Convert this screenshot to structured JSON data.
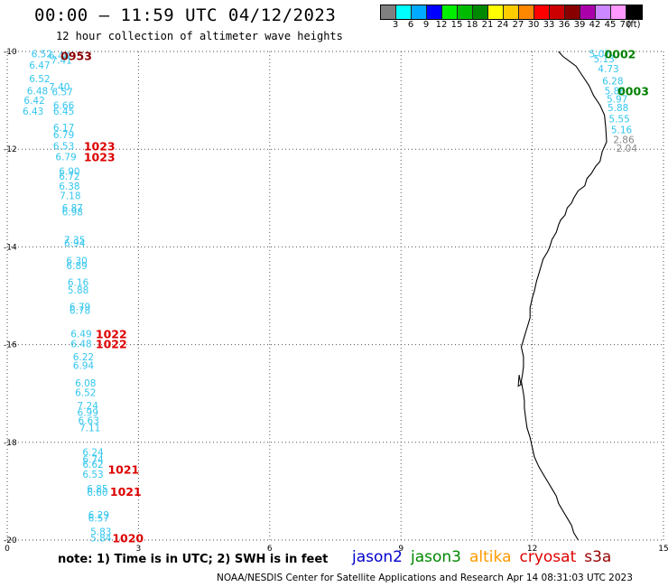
{
  "title": "00:00 – 11:59 UTC 04/12/2023",
  "subtitle": "12 hour collection of altimeter wave heights",
  "colorbar": {
    "colors": [
      "#808080",
      "#00ffff",
      "#00aaff",
      "#0000ff",
      "#00ee00",
      "#00bb00",
      "#008800",
      "#ffff00",
      "#ffcc00",
      "#ff8800",
      "#ff0000",
      "#cc0000",
      "#880000",
      "#aa00aa",
      "#cc88ff",
      "#ff99ff",
      "#000000"
    ],
    "labels": [
      "3",
      "6",
      "9",
      "12",
      "15",
      "18",
      "21",
      "24",
      "27",
      "30",
      "33",
      "36",
      "39",
      "42",
      "45",
      "70",
      "(ft)"
    ]
  },
  "axes": {
    "x_ticks": [
      "0",
      "3",
      "6",
      "9",
      "12",
      "15"
    ],
    "y_ticks": [
      "-10",
      "-12",
      "-14",
      "-16",
      "-18",
      "-20"
    ]
  },
  "chart_data": {
    "type": "scatter",
    "xlim": [
      0,
      15
    ],
    "ylim": [
      -20,
      -10
    ],
    "grid": true,
    "points": [
      {
        "x": 0.55,
        "y": -10.05,
        "v": "6.52"
      },
      {
        "x": 0.95,
        "y": -10.08,
        "v": "6.40"
      },
      {
        "x": 1.0,
        "y": -10.18,
        "v": "7.41"
      },
      {
        "x": 0.5,
        "y": -10.28,
        "v": "6.47"
      },
      {
        "x": 0.5,
        "y": -10.55,
        "v": "6.52"
      },
      {
        "x": 0.95,
        "y": -10.72,
        "v": "7.40"
      },
      {
        "x": 0.45,
        "y": -10.8,
        "v": "6.48"
      },
      {
        "x": 1.02,
        "y": -10.82,
        "v": "6.57"
      },
      {
        "x": 0.38,
        "y": -11.0,
        "v": "6.42"
      },
      {
        "x": 1.05,
        "y": -11.1,
        "v": "6.66"
      },
      {
        "x": 0.35,
        "y": -11.22,
        "v": "6.43"
      },
      {
        "x": 1.05,
        "y": -11.22,
        "v": "6.45"
      },
      {
        "x": 1.05,
        "y": -11.55,
        "v": "6.17"
      },
      {
        "x": 1.05,
        "y": -11.7,
        "v": "6.79"
      },
      {
        "x": 1.05,
        "y": -11.93,
        "v": "6.53"
      },
      {
        "x": 1.1,
        "y": -12.15,
        "v": "6.79"
      },
      {
        "x": 1.18,
        "y": -12.45,
        "v": "6.90"
      },
      {
        "x": 1.18,
        "y": -12.55,
        "v": "6.72"
      },
      {
        "x": 1.18,
        "y": -12.75,
        "v": "6.38"
      },
      {
        "x": 1.2,
        "y": -12.95,
        "v": "7.18"
      },
      {
        "x": 1.25,
        "y": -13.2,
        "v": "6.87"
      },
      {
        "x": 1.25,
        "y": -13.28,
        "v": "6.98"
      },
      {
        "x": 1.3,
        "y": -13.85,
        "v": "7.35"
      },
      {
        "x": 1.3,
        "y": -13.92,
        "v": "6.94"
      },
      {
        "x": 1.35,
        "y": -14.28,
        "v": "6.30"
      },
      {
        "x": 1.35,
        "y": -14.38,
        "v": "6.89"
      },
      {
        "x": 1.38,
        "y": -14.72,
        "v": "6.16"
      },
      {
        "x": 1.38,
        "y": -14.88,
        "v": "5.88"
      },
      {
        "x": 1.42,
        "y": -15.22,
        "v": "6.79"
      },
      {
        "x": 1.42,
        "y": -15.3,
        "v": "6.78"
      },
      {
        "x": 1.45,
        "y": -15.78,
        "v": "6.49"
      },
      {
        "x": 1.45,
        "y": -15.98,
        "v": "6.48"
      },
      {
        "x": 1.5,
        "y": -16.25,
        "v": "6.22"
      },
      {
        "x": 1.5,
        "y": -16.42,
        "v": "6.94"
      },
      {
        "x": 1.55,
        "y": -16.78,
        "v": "6.08"
      },
      {
        "x": 1.55,
        "y": -16.98,
        "v": "6.52"
      },
      {
        "x": 1.6,
        "y": -17.25,
        "v": "7.24"
      },
      {
        "x": 1.6,
        "y": -17.38,
        "v": "6.99"
      },
      {
        "x": 1.62,
        "y": -17.55,
        "v": "6.63"
      },
      {
        "x": 1.65,
        "y": -17.7,
        "v": "7.11"
      },
      {
        "x": 1.72,
        "y": -18.2,
        "v": "6.24"
      },
      {
        "x": 1.72,
        "y": -18.35,
        "v": "6.74"
      },
      {
        "x": 1.72,
        "y": -18.45,
        "v": "6.62"
      },
      {
        "x": 1.72,
        "y": -18.65,
        "v": "6.53"
      },
      {
        "x": 1.82,
        "y": -18.95,
        "v": "6.85"
      },
      {
        "x": 1.82,
        "y": -19.02,
        "v": "6.60"
      },
      {
        "x": 1.85,
        "y": -19.48,
        "v": "6.29"
      },
      {
        "x": 1.85,
        "y": -19.55,
        "v": "6.57"
      },
      {
        "x": 1.9,
        "y": -19.82,
        "v": "5.83"
      },
      {
        "x": 1.9,
        "y": -19.95,
        "v": "5.84"
      },
      {
        "x": 13.3,
        "y": -10.05,
        "v": "5.07"
      },
      {
        "x": 13.4,
        "y": -10.15,
        "v": "5.13"
      },
      {
        "x": 13.5,
        "y": -10.35,
        "v": "4.73"
      },
      {
        "x": 13.6,
        "y": -10.6,
        "v": "6.28"
      },
      {
        "x": 13.65,
        "y": -10.8,
        "v": "5.86"
      },
      {
        "x": 13.7,
        "y": -10.97,
        "v": "5.97"
      },
      {
        "x": 13.72,
        "y": -11.15,
        "v": "5.88"
      },
      {
        "x": 13.75,
        "y": -11.38,
        "v": "5.55"
      },
      {
        "x": 13.8,
        "y": -11.6,
        "v": "5.16"
      },
      {
        "x": 13.85,
        "y": -11.8,
        "v": "2.86",
        "missing": true
      },
      {
        "x": 13.92,
        "y": -11.98,
        "v": "2.04",
        "missing": true
      }
    ],
    "passes": [
      {
        "label": "0953",
        "x": 1.22,
        "y": -10.08,
        "sat": "altika"
      },
      {
        "label": "1023",
        "x": 1.75,
        "y": -11.93,
        "sat": "cryosat"
      },
      {
        "label": "1023",
        "x": 1.75,
        "y": -12.15,
        "sat": "cryosat"
      },
      {
        "label": "1022",
        "x": 2.02,
        "y": -15.78,
        "sat": "cryosat"
      },
      {
        "label": "1022",
        "x": 2.02,
        "y": -15.98,
        "sat": "cryosat"
      },
      {
        "label": "1021",
        "x": 2.3,
        "y": -18.55,
        "sat": "cryosat"
      },
      {
        "label": "1021",
        "x": 2.35,
        "y": -19.0,
        "sat": "cryosat"
      },
      {
        "label": "1020",
        "x": 2.4,
        "y": -19.95,
        "sat": "cryosat"
      },
      {
        "label": "0002",
        "x": 13.65,
        "y": -10.05,
        "sat": "jason3"
      },
      {
        "label": "0003",
        "x": 13.95,
        "y": -10.8,
        "sat": "jason3"
      }
    ],
    "coastline": [
      [
        12.6,
        -10.0
      ],
      [
        12.7,
        -10.1
      ],
      [
        12.85,
        -10.2
      ],
      [
        13.0,
        -10.3
      ],
      [
        13.15,
        -10.5
      ],
      [
        13.3,
        -10.7
      ],
      [
        13.4,
        -10.9
      ],
      [
        13.55,
        -11.1
      ],
      [
        13.65,
        -11.3
      ],
      [
        13.68,
        -11.55
      ],
      [
        13.7,
        -11.85
      ],
      [
        13.6,
        -12.05
      ],
      [
        13.55,
        -12.25
      ],
      [
        13.45,
        -12.35
      ],
      [
        13.35,
        -12.5
      ],
      [
        13.25,
        -12.6
      ],
      [
        13.2,
        -12.75
      ],
      [
        13.05,
        -12.85
      ],
      [
        12.95,
        -13.0
      ],
      [
        12.9,
        -13.1
      ],
      [
        12.8,
        -13.2
      ],
      [
        12.75,
        -13.35
      ],
      [
        12.65,
        -13.45
      ],
      [
        12.6,
        -13.55
      ],
      [
        12.55,
        -13.7
      ],
      [
        12.45,
        -13.85
      ],
      [
        12.4,
        -14.0
      ],
      [
        12.35,
        -14.1
      ],
      [
        12.25,
        -14.25
      ],
      [
        12.2,
        -14.4
      ],
      [
        12.15,
        -14.55
      ],
      [
        12.1,
        -14.7
      ],
      [
        12.05,
        -14.9
      ],
      [
        12.0,
        -15.05
      ],
      [
        11.95,
        -15.25
      ],
      [
        11.95,
        -15.45
      ],
      [
        11.9,
        -15.6
      ],
      [
        11.85,
        -15.75
      ],
      [
        11.8,
        -15.9
      ],
      [
        11.75,
        -16.05
      ],
      [
        11.8,
        -16.25
      ],
      [
        11.8,
        -16.45
      ],
      [
        11.78,
        -16.6
      ],
      [
        11.75,
        -16.75
      ],
      [
        11.78,
        -16.9
      ],
      [
        11.8,
        -17.0
      ],
      [
        11.82,
        -17.15
      ],
      [
        11.82,
        -17.3
      ],
      [
        11.85,
        -17.5
      ],
      [
        11.88,
        -17.7
      ],
      [
        11.95,
        -17.9
      ],
      [
        12.0,
        -18.1
      ],
      [
        12.05,
        -18.3
      ],
      [
        12.15,
        -18.5
      ],
      [
        12.25,
        -18.65
      ],
      [
        12.35,
        -18.8
      ],
      [
        12.45,
        -18.95
      ],
      [
        12.55,
        -19.1
      ],
      [
        12.6,
        -19.25
      ],
      [
        12.7,
        -19.4
      ],
      [
        12.8,
        -19.55
      ],
      [
        12.9,
        -19.7
      ],
      [
        12.95,
        -19.85
      ],
      [
        13.05,
        -20.0
      ]
    ]
  },
  "footer": {
    "note": "note:  1) Time is in UTC; 2) SWH is in feet",
    "satellites": [
      {
        "name": "jason2",
        "color": "#0000cc"
      },
      {
        "name": "jason3",
        "color": "#008800"
      },
      {
        "name": "altika",
        "color": "#ff9900"
      },
      {
        "name": "cryosat",
        "color": "#dd0000"
      },
      {
        "name": "s3a",
        "color": "#990000"
      }
    ],
    "credit": "NOAA/NESDIS Center for Satellite Applications and Research    Apr 14 08:31:03 UTC 2023"
  }
}
